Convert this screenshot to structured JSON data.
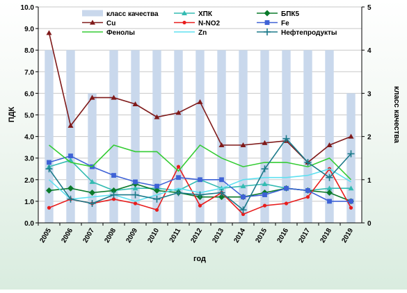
{
  "chart_data": {
    "type": "line",
    "title": "",
    "xlabel": "год",
    "ylabel": "ПДК",
    "y2label": "класс качества",
    "ylim": [
      0,
      10
    ],
    "y2lim": [
      0,
      5
    ],
    "yticks": [
      "0.0",
      "1.0",
      "2.0",
      "3.0",
      "4.0",
      "5.0",
      "6.0",
      "7.0",
      "8.0",
      "9.0",
      "10.0"
    ],
    "y2ticks": [
      "0",
      "1",
      "2",
      "3",
      "4",
      "5"
    ],
    "categories": [
      "2005",
      "2006",
      "2007",
      "2008",
      "2009",
      "2010",
      "2011",
      "2012",
      "2013",
      "2014",
      "2015",
      "2016",
      "2017",
      "2018",
      "2019"
    ],
    "legend_placement": "top",
    "gridlines": true,
    "bar_series": {
      "name": "класс качества",
      "axis": "right",
      "color": "#c9d8ec",
      "values": [
        4,
        4,
        3,
        4,
        4,
        4,
        4,
        4,
        4,
        4,
        4,
        4,
        4,
        4,
        3
      ]
    },
    "series": [
      {
        "name": "ХПК",
        "color": "#33bbb2",
        "marker": "tri",
        "values": [
          2.6,
          2.9,
          1.9,
          1.5,
          1.6,
          1.6,
          1.5,
          2.0,
          1.6,
          1.7,
          1.8,
          1.6,
          1.5,
          1.6,
          1.6
        ]
      },
      {
        "name": "БПК5",
        "color": "#0a7a2a",
        "marker": "diamond",
        "values": [
          1.5,
          1.6,
          1.4,
          1.5,
          1.8,
          1.5,
          1.4,
          1.2,
          1.2,
          1.2,
          1.4,
          1.6,
          1.5,
          1.4,
          1.0
        ]
      },
      {
        "name": "Cu",
        "color": "#7f1a1a",
        "marker": "tri",
        "values": [
          8.8,
          4.5,
          5.8,
          5.8,
          5.5,
          4.9,
          5.1,
          5.6,
          3.6,
          3.6,
          3.7,
          3.8,
          2.8,
          3.6,
          4.0
        ]
      },
      {
        "name": "N-NO2",
        "color": "#e81c1c",
        "marker": "circle",
        "values": [
          0.7,
          1.1,
          0.9,
          1.1,
          0.9,
          0.6,
          2.6,
          0.8,
          1.4,
          0.4,
          0.8,
          0.9,
          1.2,
          2.5,
          0.7
        ]
      },
      {
        "name": "Fe",
        "color": "#3e62d6",
        "marker": "square",
        "values": [
          2.8,
          3.1,
          2.6,
          2.2,
          1.9,
          1.7,
          2.1,
          2.0,
          2.0,
          1.2,
          1.3,
          1.6,
          1.5,
          1.0,
          1.0
        ]
      },
      {
        "name": "Фенолы",
        "color": "#33cc33",
        "marker": "none",
        "values": [
          3.6,
          2.8,
          2.6,
          3.6,
          3.3,
          3.3,
          2.4,
          3.6,
          3.0,
          2.6,
          2.8,
          2.8,
          2.6,
          3.0,
          2.0
        ]
      },
      {
        "name": "Zn",
        "color": "#5ee0f0",
        "marker": "none",
        "values": [
          2.0,
          1.1,
          1.2,
          1.3,
          1.0,
          1.3,
          1.6,
          1.4,
          1.6,
          2.0,
          2.1,
          2.1,
          2.2,
          2.5,
          1.9
        ]
      },
      {
        "name": "Нефтепродукты",
        "color": "#1c7a8a",
        "marker": "plus",
        "values": [
          2.5,
          1.1,
          0.9,
          1.3,
          1.3,
          1.1,
          1.4,
          1.3,
          1.4,
          0.6,
          2.5,
          3.9,
          2.8,
          2.1,
          3.2
        ]
      }
    ]
  }
}
